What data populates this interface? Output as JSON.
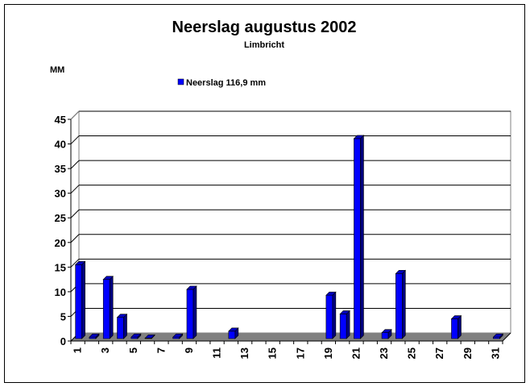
{
  "chart_data": {
    "type": "bar",
    "title": "Neerslag augustus 2002",
    "subtitle": "Limbricht",
    "ylabel": "MM",
    "xlabel": "",
    "ylim": [
      0,
      45
    ],
    "yticks": [
      0,
      5,
      10,
      15,
      20,
      25,
      30,
      35,
      40,
      45
    ],
    "grid": true,
    "three_d": true,
    "legend_position": "top",
    "categories": [
      1,
      2,
      3,
      4,
      5,
      6,
      7,
      8,
      9,
      10,
      11,
      12,
      13,
      14,
      15,
      16,
      17,
      18,
      19,
      20,
      21,
      22,
      23,
      24,
      25,
      26,
      27,
      28,
      29,
      30,
      31
    ],
    "x_tick_labels_shown": [
      1,
      3,
      5,
      7,
      9,
      11,
      13,
      15,
      17,
      19,
      21,
      23,
      25,
      27,
      29,
      31
    ],
    "series": [
      {
        "name": "Neerslag 116,9 mm",
        "color": "#0000ff",
        "values": [
          15.0,
          0.3,
          12.0,
          4.3,
          0.3,
          0.1,
          0,
          0.3,
          10.0,
          0,
          0,
          1.5,
          0,
          0,
          0,
          0,
          0,
          0,
          8.8,
          5.0,
          40.6,
          0,
          1.2,
          13.2,
          0,
          0,
          0,
          4.0,
          0,
          0,
          0.3
        ]
      }
    ],
    "floor_color": "#808080"
  }
}
